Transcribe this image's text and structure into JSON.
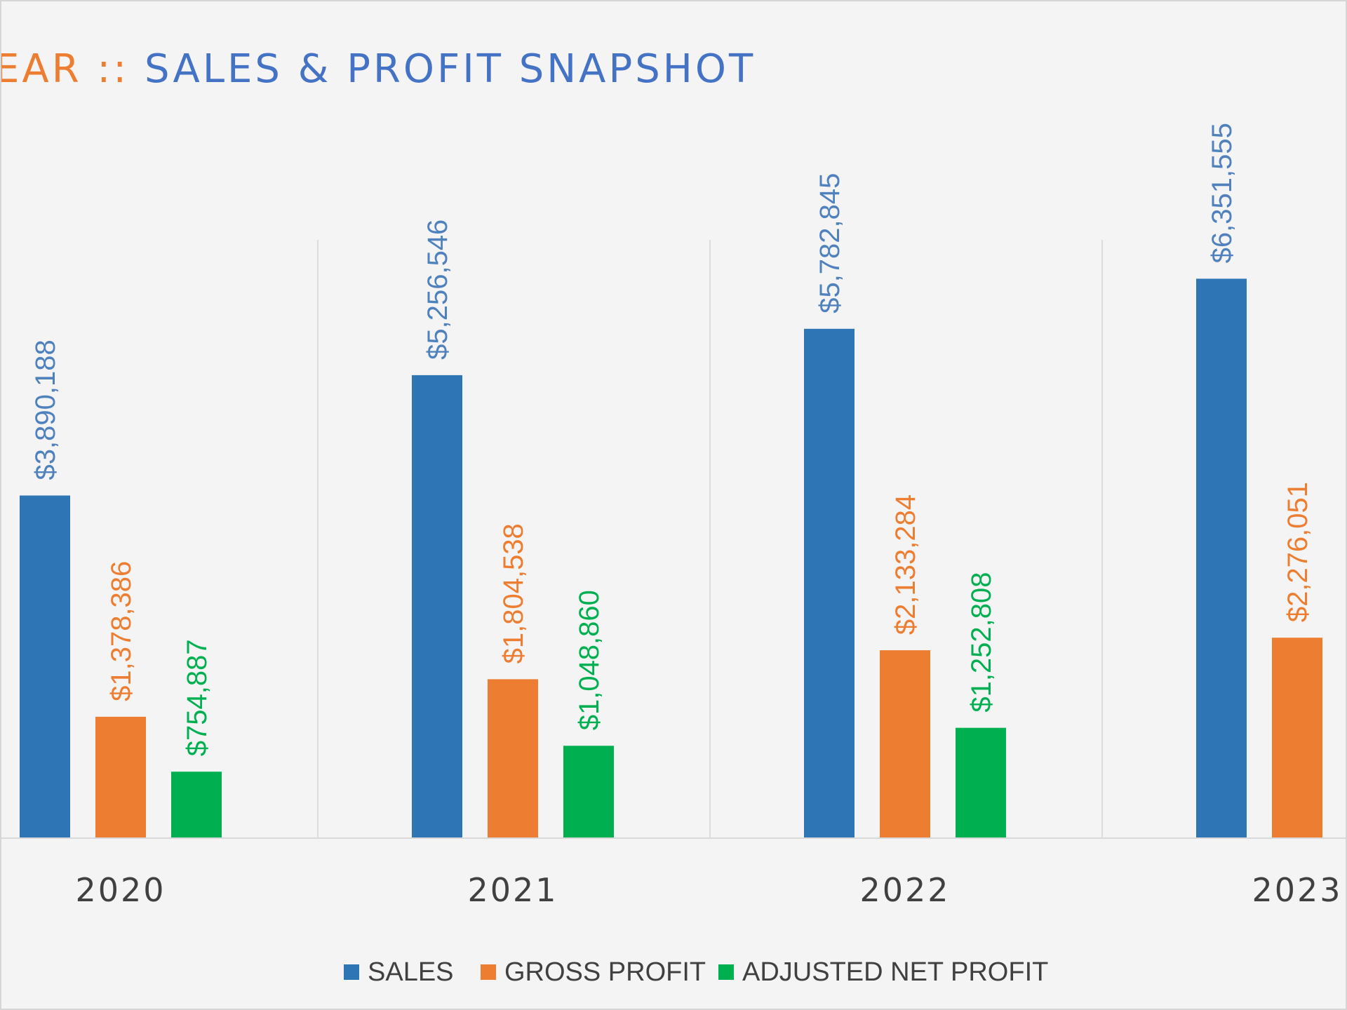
{
  "chart_data": {
    "type": "bar",
    "title": {
      "part1": "EAR :: ",
      "part2": "SALES & PROFIT SNAPSHOT",
      "part1_color": "#ed7d31",
      "part2_color": "#4472c4"
    },
    "categories": [
      "2020",
      "2021",
      "2022",
      "2023"
    ],
    "series": [
      {
        "name": "SALES",
        "color": "#2e75b6",
        "label_color": "#4f81bd",
        "values": [
          3890188,
          5256546,
          5782845,
          6351555
        ],
        "labels": [
          "$3,890,188",
          "$5,256,546",
          "$5,782,845",
          "$6,351,555"
        ]
      },
      {
        "name": "GROSS PROFIT",
        "color": "#ed7d31",
        "label_color": "#ed7d31",
        "values": [
          1378386,
          1804538,
          2133284,
          2276051
        ],
        "labels": [
          "$1,378,386",
          "$1,804,538",
          "$2,133,284",
          "$2,276,051"
        ]
      },
      {
        "name": "ADJUSTED NET PROFIT",
        "color": "#00b050",
        "label_color": "#00b050",
        "values": [
          754887,
          1048860,
          1252808,
          null
        ],
        "labels": [
          "$754,887",
          "$1,048,860",
          "$1,252,808",
          ""
        ]
      }
    ],
    "ylim": [
      0,
      9500000
    ],
    "grid": false,
    "legend_position": "bottom",
    "xlabel": "",
    "ylabel": ""
  }
}
